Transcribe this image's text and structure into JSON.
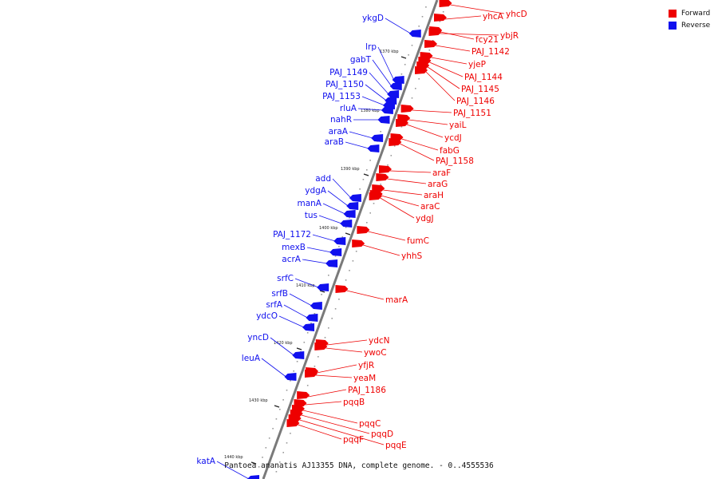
{
  "colors": {
    "forward": "#ee0000",
    "reverse": "#1010ee",
    "dna": "#7a7a7a",
    "tick": "#222222"
  },
  "legend": {
    "forward_label": "Forward",
    "reverse_label": "Reverse"
  },
  "caption": "Pantoea ananatis AJ13355 DNA, complete genome. - 0..4555536",
  "ticks": [
    "1370 kbp",
    "1380 kbp",
    "1390 kbp",
    "1400 kbp",
    "1410 kbp",
    "1420 kbp",
    "1430 kbp",
    "1440 kbp"
  ],
  "forward_genes": [
    "yhcD",
    "yhcA",
    "ybjR",
    "fcy21",
    "PAJ_1142",
    "yjeP",
    "PAJ_1144",
    "PAJ_1145",
    "PAJ_1146",
    "PAJ_1151",
    "yaiL",
    "ycdJ",
    "fabG",
    "PAJ_1158",
    "araF",
    "araG",
    "araH",
    "araC",
    "ydgJ",
    "fumC",
    "yhhS",
    "marA",
    "ydcN",
    "ywoC",
    "yfjR",
    "yeaM",
    "PAJ_1186",
    "pqqB",
    "pqqC",
    "pqqD",
    "pqqE",
    "pqqF"
  ],
  "reverse_genes": [
    "ykgD",
    "lrp",
    "gabT",
    "PAJ_1149",
    "PAJ_1150",
    "PAJ_1153",
    "rluA",
    "nahR",
    "araA",
    "araB",
    "add",
    "ydgA",
    "manA",
    "tus",
    "PAJ_1172",
    "mexB",
    "acrA",
    "srfC",
    "srfB",
    "srfA",
    "ydcO",
    "yncD",
    "leuA",
    "katA"
  ]
}
